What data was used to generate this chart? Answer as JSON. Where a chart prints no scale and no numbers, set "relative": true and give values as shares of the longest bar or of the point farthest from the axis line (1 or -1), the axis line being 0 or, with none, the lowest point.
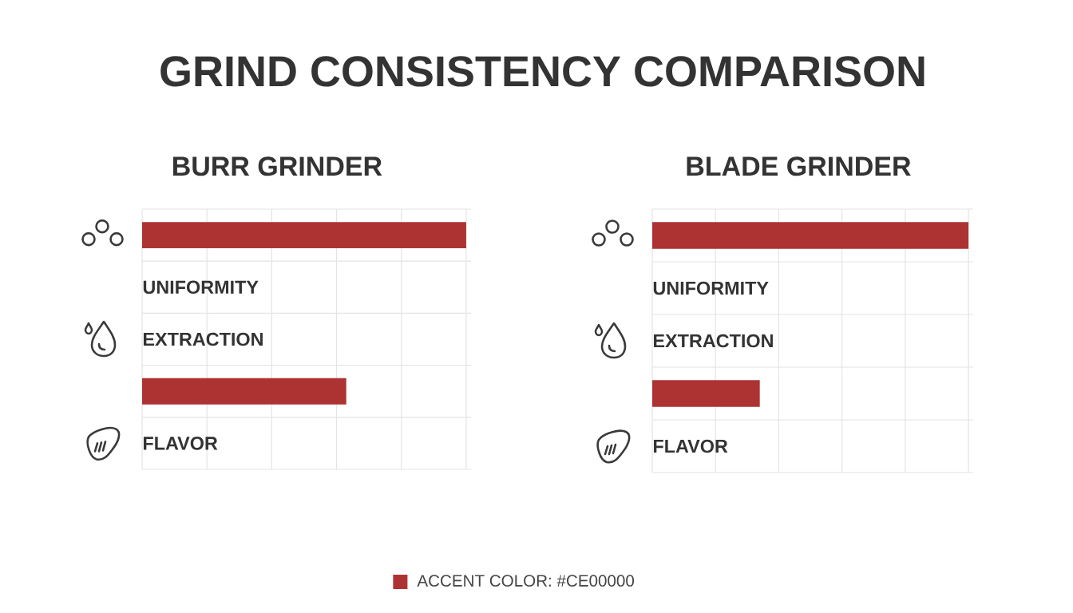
{
  "chart_data": [
    {
      "type": "other",
      "title": "GRIND CONSISTENCY COMPARISON"
    },
    {
      "type": "bar",
      "orientation": "horizontal",
      "relative": true,
      "title": "BURR GRINDER",
      "categories": [
        null,
        "UNIFORMITY",
        "EXTRACTION",
        null,
        "FLAVOR"
      ],
      "series": [
        {
          "name": "ACCENT COLOR: #CE00000",
          "color": "#ad3333",
          "values": [
            1,
            null,
            null,
            0.63,
            null
          ]
        }
      ],
      "grid": true,
      "legend": "bottom"
    },
    {
      "type": "bar",
      "orientation": "horizontal",
      "relative": true,
      "title": "BLADE GRINDER",
      "categories": [
        null,
        "UNIFORMITY",
        "EXTRACTION",
        null,
        "FLAVOR"
      ],
      "series": [
        {
          "color": "#ad3333",
          "values": [
            1,
            null,
            null,
            0.34,
            null
          ]
        }
      ],
      "grid": true
    }
  ]
}
